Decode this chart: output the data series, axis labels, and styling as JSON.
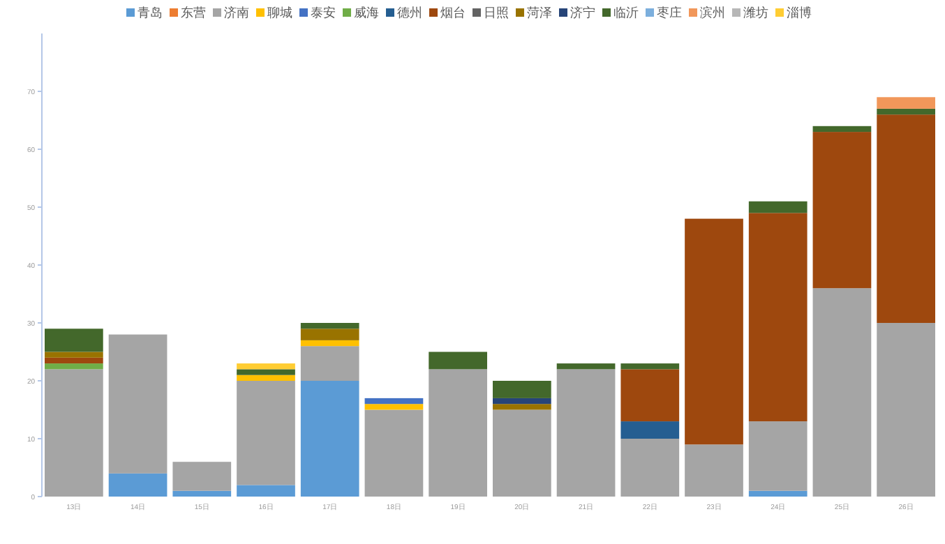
{
  "chart_data": {
    "type": "bar",
    "stacked": true,
    "legend": "top",
    "categories": [
      "13日",
      "14日",
      "15日",
      "16日",
      "17日",
      "18日",
      "19日",
      "20日",
      "21日",
      "22日",
      "23日",
      "24日",
      "25日",
      "26日"
    ],
    "ylim": [
      0,
      80
    ],
    "yticks": [
      0,
      10,
      20,
      30,
      40,
      50,
      60,
      70
    ],
    "series": [
      {
        "name": "青岛",
        "color": "#5b9bd5",
        "values": [
          null,
          4,
          1,
          2,
          20,
          null,
          null,
          null,
          null,
          null,
          null,
          1,
          null,
          null
        ]
      },
      {
        "name": "东营",
        "color": "#ed7d31",
        "values": [
          null,
          null,
          null,
          null,
          null,
          null,
          null,
          null,
          null,
          null,
          null,
          null,
          null,
          null
        ]
      },
      {
        "name": "济南",
        "color": "#a5a5a5",
        "values": [
          22,
          24,
          5,
          18,
          6,
          15,
          22,
          15,
          22,
          10,
          9,
          12,
          36,
          30
        ]
      },
      {
        "name": "聊城",
        "color": "#ffc000",
        "values": [
          null,
          null,
          null,
          1,
          1,
          1,
          null,
          null,
          null,
          null,
          null,
          null,
          null,
          null
        ]
      },
      {
        "name": "泰安",
        "color": "#4472c4",
        "values": [
          null,
          null,
          null,
          null,
          null,
          1,
          null,
          null,
          null,
          null,
          null,
          null,
          null,
          null
        ]
      },
      {
        "name": "威海",
        "color": "#70ad47",
        "values": [
          1,
          null,
          null,
          null,
          null,
          null,
          null,
          null,
          null,
          null,
          null,
          null,
          null,
          null
        ]
      },
      {
        "name": "德州",
        "color": "#255e91",
        "values": [
          null,
          null,
          null,
          null,
          null,
          null,
          null,
          null,
          null,
          3,
          null,
          null,
          null,
          null
        ]
      },
      {
        "name": "烟台",
        "color": "#9e480e",
        "values": [
          1,
          null,
          null,
          null,
          null,
          null,
          null,
          null,
          null,
          9,
          39,
          36,
          27,
          36
        ]
      },
      {
        "name": "日照",
        "color": "#636363",
        "values": [
          null,
          null,
          null,
          null,
          null,
          null,
          null,
          null,
          null,
          null,
          null,
          null,
          null,
          null
        ]
      },
      {
        "name": "菏泽",
        "color": "#997300",
        "values": [
          1,
          null,
          null,
          null,
          2,
          null,
          null,
          1,
          null,
          null,
          null,
          null,
          null,
          null
        ]
      },
      {
        "name": "济宁",
        "color": "#264478",
        "values": [
          null,
          null,
          null,
          null,
          null,
          null,
          null,
          1,
          null,
          null,
          null,
          null,
          null,
          null
        ]
      },
      {
        "name": "临沂",
        "color": "#43682b",
        "values": [
          4,
          null,
          null,
          1,
          1,
          null,
          3,
          3,
          1,
          1,
          null,
          2,
          1,
          1
        ]
      },
      {
        "name": "枣庄",
        "color": "#7cafdd",
        "values": [
          null,
          null,
          null,
          null,
          null,
          null,
          null,
          null,
          null,
          null,
          null,
          null,
          null,
          null
        ]
      },
      {
        "name": "滨州",
        "color": "#f1975a",
        "values": [
          null,
          null,
          null,
          null,
          null,
          null,
          null,
          null,
          null,
          null,
          null,
          null,
          null,
          2
        ]
      },
      {
        "name": "潍坊",
        "color": "#b7b7b7",
        "values": [
          null,
          null,
          null,
          null,
          null,
          null,
          null,
          null,
          null,
          null,
          null,
          null,
          null,
          null
        ]
      },
      {
        "name": "淄博",
        "color": "#ffcd33",
        "values": [
          null,
          null,
          null,
          1,
          null,
          null,
          null,
          null,
          null,
          null,
          null,
          null,
          null,
          null
        ]
      }
    ]
  }
}
